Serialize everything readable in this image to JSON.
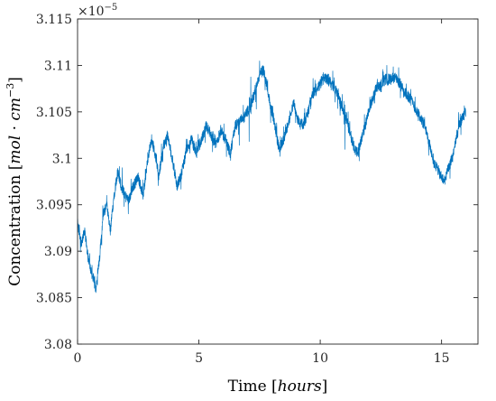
{
  "chart_data": {
    "type": "line",
    "title": "",
    "xlabel": {
      "prefix": "Time ",
      "open": "[",
      "unit": "hours",
      "close": "]"
    },
    "ylabel": {
      "prefix": "Concentration ",
      "open": "[",
      "unit_a": "mol",
      "dot": " · ",
      "unit_b": "cm",
      "exp": "−3",
      "close": "]"
    },
    "y_multiplier": {
      "base": "×10",
      "exp": "−5"
    },
    "xlim": [
      0,
      16.5
    ],
    "ylim": [
      3.08,
      3.115
    ],
    "xticks": [
      0,
      5,
      10,
      15
    ],
    "xtick_labels": [
      "0",
      "5",
      "10",
      "15"
    ],
    "yticks": [
      3.08,
      3.085,
      3.09,
      3.095,
      3.1,
      3.105,
      3.11,
      3.115
    ],
    "ytick_labels": [
      "3.08",
      "3.085",
      "3.09",
      "3.095",
      "3.1",
      "3.105",
      "3.11",
      "3.115"
    ],
    "grid": false,
    "line_color": "#0072BD",
    "series": [
      {
        "x": [
          0,
          0.15,
          0.3,
          0.45,
          0.6,
          0.75,
          0.9,
          1.05,
          1.2,
          1.35,
          1.5,
          1.65,
          1.8,
          1.95,
          2.1,
          2.3,
          2.5,
          2.7,
          2.9,
          3.05,
          3.2,
          3.35,
          3.5,
          3.7,
          3.9,
          4.1,
          4.3,
          4.5,
          4.7,
          4.9,
          5.1,
          5.3,
          5.5,
          5.7,
          5.9,
          6.1,
          6.3,
          6.5,
          6.7,
          6.9,
          7.1,
          7.3,
          7.5,
          7.65,
          7.8,
          7.95,
          8.1,
          8.3,
          8.5,
          8.7,
          8.9,
          9.1,
          9.3,
          9.5,
          9.7,
          9.9,
          10.1,
          10.3,
          10.5,
          10.7,
          10.9,
          11.1,
          11.3,
          11.5,
          11.7,
          11.9,
          12.1,
          12.3,
          12.5,
          12.7,
          12.9,
          13.1,
          13.3,
          13.5,
          13.7,
          13.9,
          14.1,
          14.3,
          14.5,
          14.7,
          14.9,
          15.1,
          15.3,
          15.5,
          15.7,
          15.9,
          16.0
        ],
        "y": [
          3.093,
          3.091,
          3.092,
          3.089,
          3.0875,
          3.086,
          3.089,
          3.094,
          3.095,
          3.092,
          3.096,
          3.0985,
          3.097,
          3.096,
          3.0955,
          3.097,
          3.098,
          3.096,
          3.1,
          3.102,
          3.1005,
          3.098,
          3.101,
          3.1025,
          3.1,
          3.097,
          3.0985,
          3.101,
          3.102,
          3.1005,
          3.102,
          3.1035,
          3.1025,
          3.1015,
          3.103,
          3.102,
          3.1005,
          3.1035,
          3.104,
          3.1045,
          3.1055,
          3.107,
          3.109,
          3.1095,
          3.108,
          3.1055,
          3.104,
          3.101,
          3.102,
          3.104,
          3.106,
          3.104,
          3.1035,
          3.105,
          3.107,
          3.1075,
          3.1085,
          3.1085,
          3.108,
          3.107,
          3.1055,
          3.104,
          3.102,
          3.1005,
          3.102,
          3.104,
          3.106,
          3.1075,
          3.108,
          3.1085,
          3.1085,
          3.1087,
          3.108,
          3.107,
          3.1065,
          3.1055,
          3.1045,
          3.1035,
          3.1015,
          3.0995,
          3.0985,
          3.0975,
          3.099,
          3.1005,
          3.1035,
          3.1045,
          3.105
        ]
      }
    ]
  }
}
